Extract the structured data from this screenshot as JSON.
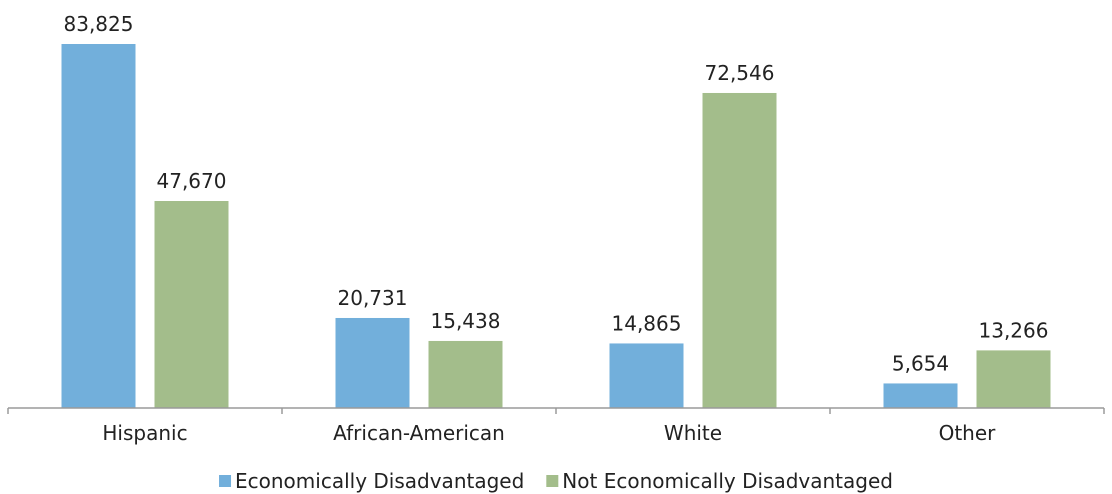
{
  "chart_data": {
    "type": "bar",
    "categories": [
      "Hispanic",
      "African-American",
      "White",
      "Other"
    ],
    "series": [
      {
        "name": "Economically Disadvantaged",
        "values": [
          83825,
          20731,
          14865,
          5654
        ],
        "labels": [
          "83,825",
          "20,731",
          "14,865",
          "5,654"
        ],
        "color": "#72afdb"
      },
      {
        "name": "Not Economically Disadvantaged",
        "values": [
          47670,
          15438,
          72546,
          13266
        ],
        "labels": [
          "47,670",
          "15,438",
          "72,546",
          "13,266"
        ],
        "color": "#a3bd8b"
      }
    ],
    "ylim": [
      0,
      83825
    ],
    "grid": false,
    "legend": "bottom"
  }
}
